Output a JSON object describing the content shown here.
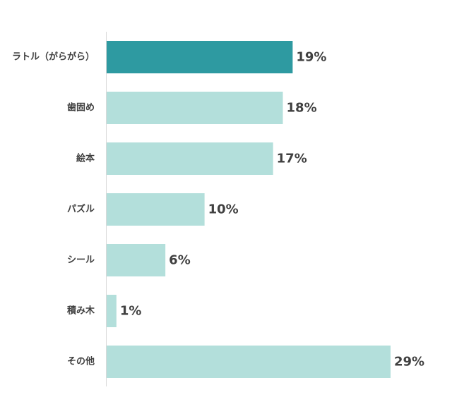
{
  "chart_data": {
    "type": "bar",
    "orientation": "horizontal",
    "categories": [
      "ラトル（がらがら）",
      "歯固め",
      "絵本",
      "パズル",
      "シール",
      "積み木",
      "その他"
    ],
    "values": [
      19,
      18,
      17,
      10,
      6,
      1,
      29
    ],
    "value_labels": [
      "19%",
      "18%",
      "17%",
      "10%",
      "6%",
      "1%",
      "29%"
    ],
    "unit": "%",
    "xlim": [
      0,
      29
    ],
    "grid": false,
    "legend": "none",
    "colors": {
      "highlight": "#2e9aa1",
      "default": "#b3dfdb",
      "axis": "#d9d9d9",
      "text": "#404040"
    },
    "highlight_index": 0
  }
}
